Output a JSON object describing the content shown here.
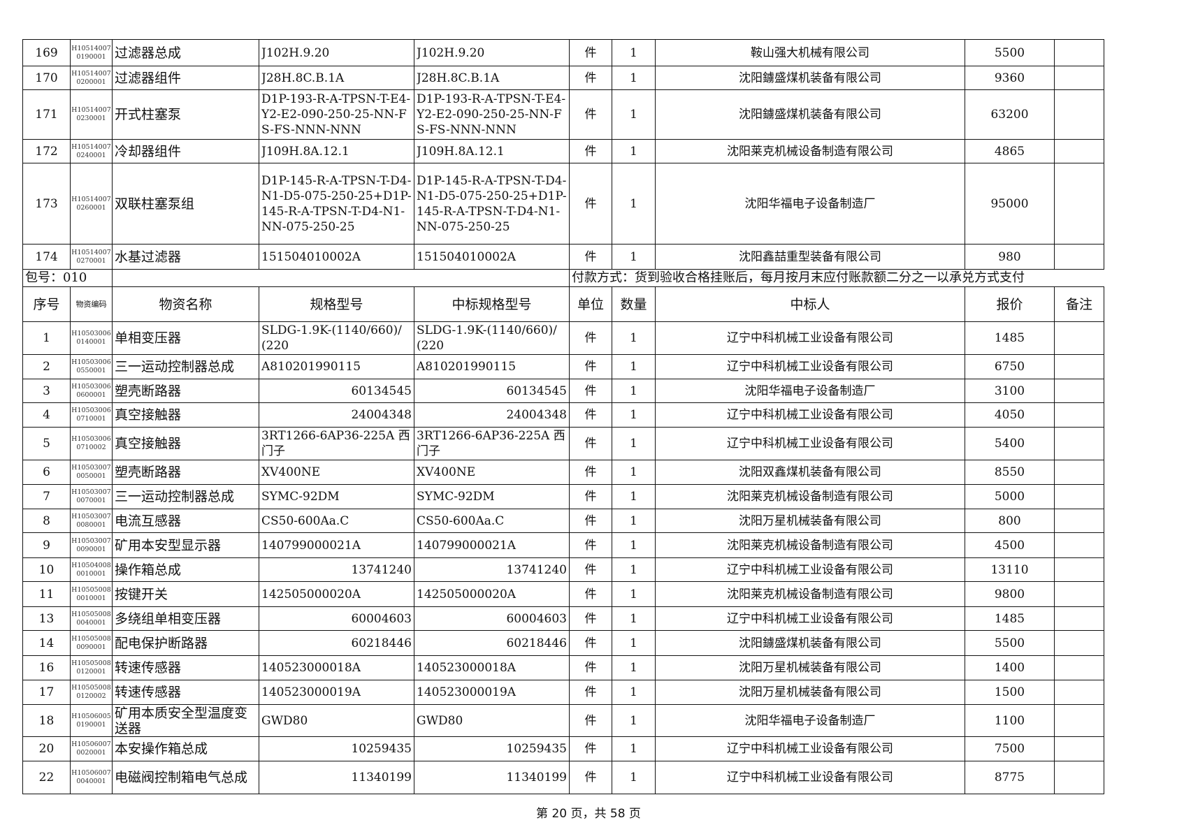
{
  "group1_rows": [
    {
      "no": "169",
      "code": "H105140070190001",
      "name": "过滤器总成",
      "spec": "J102H.9.20",
      "bid_spec": "J102H.9.20",
      "unit": "件",
      "qty": "1",
      "winner": "鞍山强大机械有限公司",
      "price": "5500",
      "remark": ""
    },
    {
      "no": "170",
      "code": "H105140070200001",
      "name": "过滤器组件",
      "spec": "J28H.8C.B.1A",
      "bid_spec": "J28H.8C.B.1A",
      "unit": "件",
      "qty": "1",
      "winner": "沈阳鐪盛煤机装备有限公司",
      "price": "9360",
      "remark": ""
    },
    {
      "no": "171",
      "code": "H105140070230001",
      "name": "开式柱塞泵",
      "spec": "D1P-193-R-A-TPSN-T-E4-Y2-E2-090-250-25-NN-FS-FS-NNN-NNN",
      "bid_spec": "D1P-193-R-A-TPSN-T-E4-Y2-E2-090-250-25-NN-FS-FS-NNN-NNN",
      "unit": "件",
      "qty": "1",
      "winner": "沈阳鐪盛煤机装备有限公司",
      "price": "63200",
      "remark": ""
    },
    {
      "no": "172",
      "code": "H105140070240001",
      "name": "冷却器组件",
      "spec": "J109H.8A.12.1",
      "bid_spec": "J109H.8A.12.1",
      "unit": "件",
      "qty": "1",
      "winner": "沈阳莱克机械设备制造有限公司",
      "price": "4865",
      "remark": ""
    },
    {
      "no": "173",
      "code": "H105140070260001",
      "name": "双联柱塞泵组",
      "spec": "D1P-145-R-A-TPSN-T-D4-N1-D5-075-250-25+D1P-145-R-A-TPSN-T-D4-N1-NN-075-250-25",
      "bid_spec": "D1P-145-R-A-TPSN-T-D4-N1-D5-075-250-25+D1P-145-R-A-TPSN-T-D4-N1-NN-075-250-25",
      "unit": "件",
      "qty": "1",
      "winner": "沈阳华福电子设备制造厂",
      "price": "95000",
      "remark": ""
    },
    {
      "no": "174",
      "code": "H105140070270001",
      "name": "水基过滤器",
      "spec": "151504010002A",
      "bid_spec": "151504010002A",
      "unit": "件",
      "qty": "1",
      "winner": "沈阳鑫喆重型装备有限公司",
      "price": "980",
      "remark": ""
    }
  ],
  "package": {
    "label": "包号：010",
    "payment": "付款方式：货到验收合格挂账后，每月按月末应付账款额二分之一以承兑方式支付"
  },
  "headers": {
    "no": "序号",
    "code": "物资编码",
    "name": "物资名称",
    "spec": "规格型号",
    "bid_spec": "中标规格型号",
    "unit": "单位",
    "qty": "数量",
    "winner": "中标人",
    "price": "报价",
    "remark": "备注"
  },
  "group2_rows": [
    {
      "no": "1",
      "code": "H105030060140001",
      "name": "单相变压器",
      "spec": "SLDG-1.9K-(1140/660)/(220",
      "bid_spec": "SLDG-1.9K-(1140/660)/(220",
      "unit": "件",
      "qty": "1",
      "winner": "辽宁中科机械工业设备有限公司",
      "price": "1485",
      "remark": ""
    },
    {
      "no": "2",
      "code": "H105030060550001",
      "name": "三一运动控制器总成",
      "spec": "A810201990115",
      "bid_spec": "A810201990115",
      "unit": "件",
      "qty": "1",
      "winner": "辽宁中科机械工业设备有限公司",
      "price": "6750",
      "remark": ""
    },
    {
      "no": "3",
      "code": "H105030060600001",
      "name": "塑壳断路器",
      "spec": "60134545",
      "bid_spec": "60134545",
      "unit": "件",
      "qty": "1",
      "winner": "沈阳华福电子设备制造厂",
      "price": "3100",
      "remark": ""
    },
    {
      "no": "4",
      "code": "H105030060710001",
      "name": "真空接触器",
      "spec": "24004348",
      "bid_spec": "24004348",
      "unit": "件",
      "qty": "1",
      "winner": "辽宁中科机械工业设备有限公司",
      "price": "4050",
      "remark": ""
    },
    {
      "no": "5",
      "code": "H105030060710002",
      "name": "真空接触器",
      "spec": "3RT1266-6AP36-225A 西门子",
      "bid_spec": "3RT1266-6AP36-225A 西门子",
      "unit": "件",
      "qty": "1",
      "winner": "辽宁中科机械工业设备有限公司",
      "price": "5400",
      "remark": ""
    },
    {
      "no": "6",
      "code": "H105030070050001",
      "name": "塑壳断路器",
      "spec": "XV400NE",
      "bid_spec": "XV400NE",
      "unit": "件",
      "qty": "1",
      "winner": "沈阳双鑫煤机装备有限公司",
      "price": "8550",
      "remark": ""
    },
    {
      "no": "7",
      "code": "H105030070070001",
      "name": "三一运动控制器总成",
      "spec": "SYMC-92DM",
      "bid_spec": "SYMC-92DM",
      "unit": "件",
      "qty": "1",
      "winner": "沈阳莱克机械设备制造有限公司",
      "price": "5000",
      "remark": ""
    },
    {
      "no": "8",
      "code": "H105030070080001",
      "name": "电流互感器",
      "spec": "CS50-600Aa.C",
      "bid_spec": "CS50-600Aa.C",
      "unit": "件",
      "qty": "1",
      "winner": "沈阳万星机械装备有限公司",
      "price": "800",
      "remark": ""
    },
    {
      "no": "9",
      "code": "H105030070090001",
      "name": "矿用本安型显示器",
      "spec": "140799000021A",
      "bid_spec": "140799000021A",
      "unit": "件",
      "qty": "1",
      "winner": "沈阳莱克机械设备制造有限公司",
      "price": "4500",
      "remark": ""
    },
    {
      "no": "10",
      "code": "H105040080010001",
      "name": "操作箱总成",
      "spec": "13741240",
      "bid_spec": "13741240",
      "unit": "件",
      "qty": "1",
      "winner": "辽宁中科机械工业设备有限公司",
      "price": "13110",
      "remark": ""
    },
    {
      "no": "11",
      "code": "H105050080010001",
      "name": "按键开关",
      "spec": "142505000020A",
      "bid_spec": "142505000020A",
      "unit": "件",
      "qty": "1",
      "winner": "沈阳莱克机械设备制造有限公司",
      "price": "9800",
      "remark": ""
    },
    {
      "no": "13",
      "code": "H105050080040001",
      "name": "多绕组单相变压器",
      "spec": "60004603",
      "bid_spec": "60004603",
      "unit": "件",
      "qty": "1",
      "winner": "辽宁中科机械工业设备有限公司",
      "price": "1485",
      "remark": ""
    },
    {
      "no": "14",
      "code": "H105050080090001",
      "name": "配电保护断路器",
      "spec": "60218446",
      "bid_spec": "60218446",
      "unit": "件",
      "qty": "1",
      "winner": "沈阳鐪盛煤机装备有限公司",
      "price": "5500",
      "remark": ""
    },
    {
      "no": "16",
      "code": "H105050080120001",
      "name": "转速传感器",
      "spec": "140523000018A",
      "bid_spec": "140523000018A",
      "unit": "件",
      "qty": "1",
      "winner": "沈阳万星机械装备有限公司",
      "price": "1400",
      "remark": ""
    },
    {
      "no": "17",
      "code": "H105050080120002",
      "name": "转速传感器",
      "spec": "140523000019A",
      "bid_spec": "140523000019A",
      "unit": "件",
      "qty": "1",
      "winner": "沈阳万星机械装备有限公司",
      "price": "1500",
      "remark": ""
    },
    {
      "no": "18",
      "code": "H105060050190001",
      "name": "矿用本质安全型温度变送器",
      "spec": "GWD80",
      "bid_spec": "GWD80",
      "unit": "件",
      "qty": "1",
      "winner": "沈阳华福电子设备制造厂",
      "price": "1100",
      "remark": ""
    },
    {
      "no": "20",
      "code": "H105060070020001",
      "name": "本安操作箱总成",
      "spec": "10259435",
      "bid_spec": "10259435",
      "unit": "件",
      "qty": "1",
      "winner": "辽宁中科机械工业设备有限公司",
      "price": "7500",
      "remark": ""
    },
    {
      "no": "22",
      "code": "H105060070040001",
      "name": "电磁阀控制箱电气总成",
      "spec": "11340199",
      "bid_spec": "11340199",
      "unit": "件",
      "qty": "1",
      "winner": "辽宁中科机械工业设备有限公司",
      "price": "8775",
      "remark": ""
    }
  ],
  "footer": {
    "page_text": "第 20 页，共 58 页"
  }
}
